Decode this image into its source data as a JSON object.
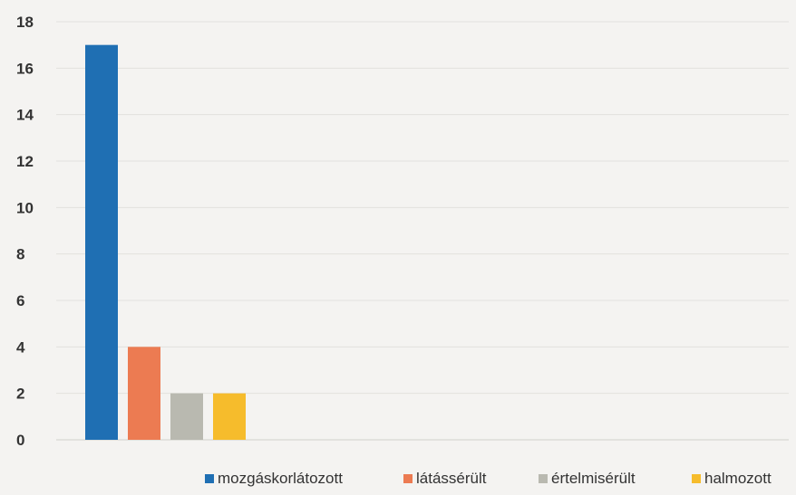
{
  "chart_data": {
    "type": "bar",
    "title": "",
    "xlabel": "",
    "ylabel": "",
    "ylim": [
      0,
      18
    ],
    "yticks": [
      0,
      2,
      4,
      6,
      8,
      10,
      12,
      14,
      16,
      18
    ],
    "grid": true,
    "legend_position": "bottom-right",
    "series": [
      {
        "name": "mozgáskorlátozott",
        "value": 17,
        "color": "#1f6fb3"
      },
      {
        "name": "látássérült",
        "value": 4,
        "color": "#ec7b52"
      },
      {
        "name": "értelmisérült",
        "value": 2,
        "color": "#b9b9b0"
      },
      {
        "name": "halmozott",
        "value": 2,
        "color": "#f6bc2c"
      }
    ]
  }
}
